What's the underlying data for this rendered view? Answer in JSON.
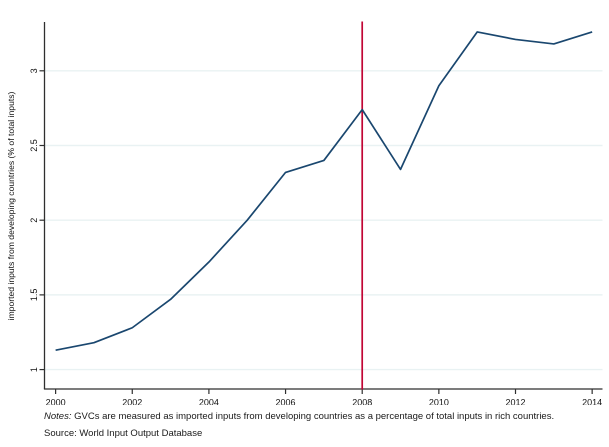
{
  "chart_data": {
    "type": "line",
    "title": "",
    "x": [
      2000,
      2001,
      2002,
      2003,
      2004,
      2005,
      2006,
      2007,
      2008,
      2009,
      2010,
      2011,
      2012,
      2013,
      2014
    ],
    "series": [
      {
        "name": "imported inputs from developing countries (% of total inputs)",
        "values": [
          1.13,
          1.18,
          1.28,
          1.47,
          1.72,
          2.0,
          2.32,
          2.4,
          2.74,
          2.34,
          2.9,
          3.26,
          3.21,
          3.18,
          3.26
        ]
      }
    ],
    "xlabel": "",
    "ylabel": "imported inputs from developing countries (% of total inputs)",
    "xticks": [
      2000,
      2002,
      2004,
      2006,
      2008,
      2010,
      2012,
      2014
    ],
    "yticks": [
      1,
      1.5,
      2,
      2.5,
      3
    ],
    "ytick_labels": [
      "1",
      "1.5",
      "2",
      "2.5",
      "3"
    ],
    "xlim": [
      1999.71,
      2014.27
    ],
    "ylim": [
      0.87,
      3.32
    ],
    "grid": "horizontal",
    "legend": "none",
    "vline": {
      "x": 2008,
      "color": "#c10534"
    },
    "colors": {
      "line": "#1a476f",
      "grid": "#e9f2f3",
      "axis": "#2f2f2f",
      "text": "#111111"
    }
  },
  "notes": {
    "label": "Notes:",
    "text": " GVCs are measured as imported inputs from developing countries as a percentage of total inputs in rich countries.",
    "source": "Source: World Input Output Database"
  }
}
